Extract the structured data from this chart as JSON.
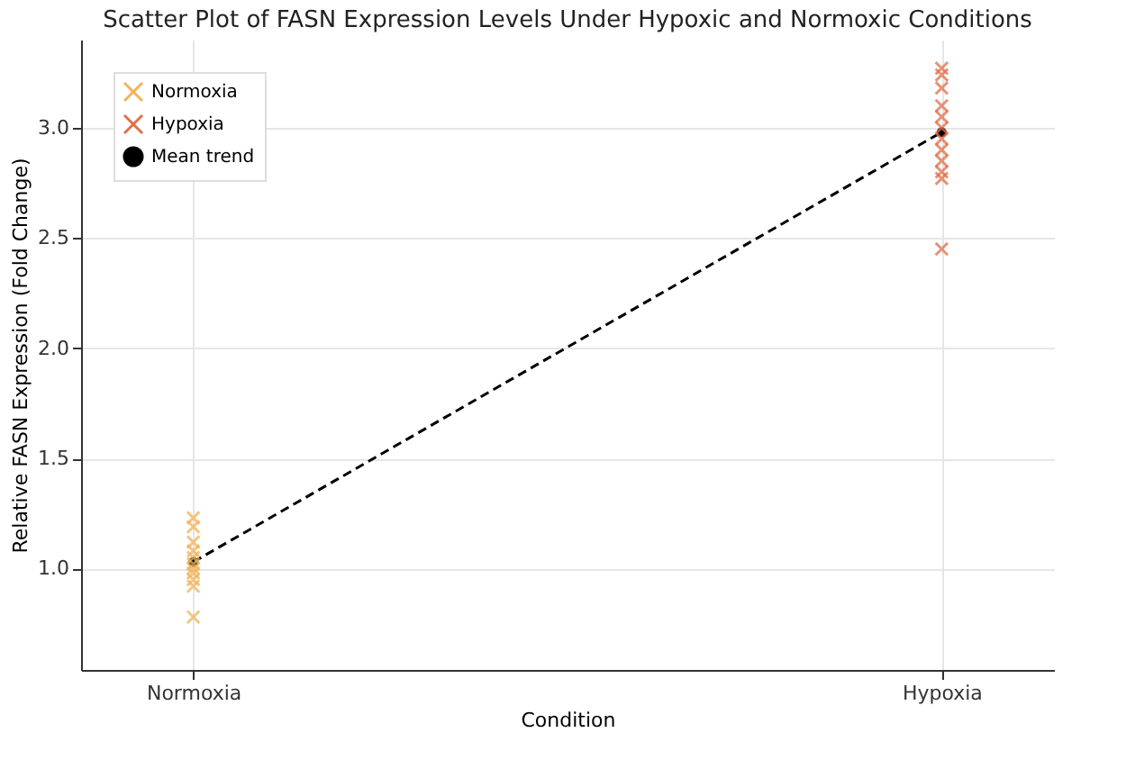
{
  "chart_data": {
    "type": "scatter",
    "title": "Scatter Plot of FASN Expression Levels Under Hypoxic and Normoxic Conditions",
    "xlabel": "Condition",
    "ylabel": "Relative FASN Expression (Fold Change)",
    "categories": [
      "Normoxia",
      "Hypoxia"
    ],
    "series": [
      {
        "name": "Normoxia",
        "marker": "cross",
        "color": "#f0b45a",
        "x": [
          "Normoxia",
          "Normoxia",
          "Normoxia",
          "Normoxia",
          "Normoxia",
          "Normoxia",
          "Normoxia",
          "Normoxia",
          "Normoxia",
          "Normoxia",
          "Normoxia"
        ],
        "values": [
          1.23,
          1.19,
          1.12,
          1.08,
          1.05,
          1.02,
          1.0,
          0.98,
          0.95,
          0.92,
          0.78
        ]
      },
      {
        "name": "Hypoxia",
        "marker": "cross",
        "color": "#e0704a",
        "x": [
          "Hypoxia",
          "Hypoxia",
          "Hypoxia",
          "Hypoxia",
          "Hypoxia",
          "Hypoxia",
          "Hypoxia",
          "Hypoxia",
          "Hypoxia",
          "Hypoxia",
          "Hypoxia",
          "Hypoxia"
        ],
        "values": [
          3.27,
          3.24,
          3.18,
          3.1,
          3.05,
          3.0,
          2.95,
          2.9,
          2.85,
          2.8,
          2.77,
          2.45
        ]
      },
      {
        "name": "Mean trend",
        "type": "line",
        "marker": "circle",
        "line_style": "dashed",
        "color": "#000000",
        "x": [
          "Normoxia",
          "Hypoxia"
        ],
        "values": [
          1.03,
          2.98
        ]
      }
    ],
    "ylim": [
      0.54,
      3.4
    ],
    "yticks": [
      {
        "value": 1,
        "label": "1.0"
      },
      {
        "value": 1.5,
        "label": "1.5"
      },
      {
        "value": 2,
        "label": "2.0"
      },
      {
        "value": 2.5,
        "label": "2.5"
      },
      {
        "value": 3,
        "label": "3.0"
      }
    ],
    "grid": true,
    "legend": "top left"
  }
}
